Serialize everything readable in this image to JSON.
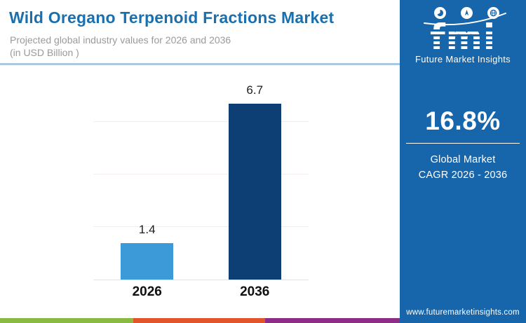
{
  "header": {
    "title": "Wild Oregano Terpenoid Fractions Market",
    "subtitle_line1": "Projected global industry values for 2026 and 2036",
    "subtitle_line2": "(in USD Billion )"
  },
  "chart_data": {
    "type": "bar",
    "title": "Wild Oregano Terpenoid Fractions Market",
    "categories": [
      "2026",
      "2036"
    ],
    "values": [
      1.4,
      6.7
    ],
    "data_labels": [
      "1.4",
      "6.7"
    ],
    "bar_colors": [
      "#3d9ad8",
      "#0d3e74"
    ],
    "xlabel": "",
    "ylabel": "USD Billion",
    "ylim": [
      0,
      7.9
    ],
    "gridline_values": [
      2,
      4,
      6
    ],
    "legend": "none",
    "grid": "horizontal-light"
  },
  "sidebar": {
    "logo": {
      "text": "fmi",
      "tagline": "Future Market Insights",
      "icons": [
        "pie-chart-icon",
        "compass-icon",
        "globe-icon"
      ]
    },
    "stat": {
      "value": "16.8%",
      "label_line1": "Global Market",
      "label_line2": "CAGR 2026 - 2036"
    },
    "website": "www.futuremarketinsights.com",
    "background_color": "#1766ab"
  },
  "footer": {
    "stripe_colors": [
      "#8aba42",
      "#e2552b",
      "#8c2d88"
    ]
  },
  "colors": {
    "title": "#1a70af",
    "subtitle": "#9a9a9a",
    "divider": "#a9c9e2",
    "gridline": "#f5eded",
    "baseline": "#e8e0e0"
  }
}
